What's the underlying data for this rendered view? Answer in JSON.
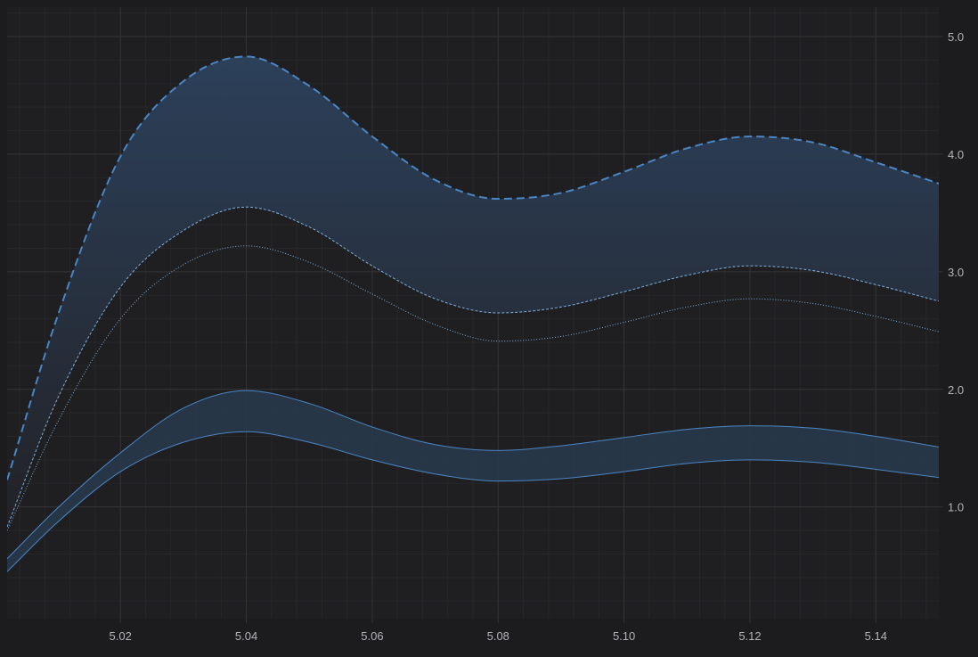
{
  "chart_data": {
    "type": "line",
    "title": "",
    "xlabel": "",
    "ylabel": "",
    "xlim": [
      5.002,
      5.15
    ],
    "ylim": [
      0.05,
      5.25
    ],
    "y_axis_position": "right",
    "grid": true,
    "x_ticks": [
      {
        "value": 5.02,
        "label": "5.02"
      },
      {
        "value": 5.04,
        "label": "5.04"
      },
      {
        "value": 5.06,
        "label": "5.06"
      },
      {
        "value": 5.08,
        "label": "5.08"
      },
      {
        "value": 5.1,
        "label": "5.10"
      },
      {
        "value": 5.12,
        "label": "5.12"
      },
      {
        "value": 5.14,
        "label": "5.14"
      }
    ],
    "y_ticks": [
      {
        "value": 1.0,
        "label": "1.0"
      },
      {
        "value": 2.0,
        "label": "2.0"
      },
      {
        "value": 3.0,
        "label": "3.0"
      },
      {
        "value": 4.0,
        "label": "4.0"
      },
      {
        "value": 5.0,
        "label": "5.0"
      }
    ],
    "x": [
      5.002,
      5.01,
      5.02,
      5.03,
      5.04,
      5.05,
      5.06,
      5.07,
      5.08,
      5.09,
      5.1,
      5.11,
      5.12,
      5.13,
      5.14,
      5.15
    ],
    "series": [
      {
        "style": "dashed",
        "values": [
          1.23,
          2.62,
          3.98,
          4.62,
          4.83,
          4.58,
          4.15,
          3.78,
          3.62,
          3.67,
          3.85,
          4.05,
          4.15,
          4.1,
          3.93,
          3.75
        ]
      },
      {
        "style": "fine-dashed",
        "values": [
          0.83,
          1.92,
          2.87,
          3.35,
          3.55,
          3.38,
          3.05,
          2.77,
          2.65,
          2.7,
          2.83,
          2.97,
          3.05,
          3.01,
          2.89,
          2.75
        ]
      },
      {
        "style": "dotted",
        "values": [
          0.8,
          1.72,
          2.6,
          3.06,
          3.22,
          3.08,
          2.81,
          2.55,
          2.41,
          2.45,
          2.57,
          2.7,
          2.77,
          2.73,
          2.62,
          2.49
        ]
      },
      {
        "style": "solid-upper",
        "values": [
          0.56,
          0.99,
          1.46,
          1.84,
          1.99,
          1.88,
          1.68,
          1.53,
          1.48,
          1.52,
          1.59,
          1.66,
          1.69,
          1.67,
          1.6,
          1.51
        ]
      },
      {
        "style": "solid-lower",
        "values": [
          0.45,
          0.87,
          1.3,
          1.55,
          1.64,
          1.55,
          1.4,
          1.28,
          1.22,
          1.24,
          1.3,
          1.37,
          1.4,
          1.38,
          1.32,
          1.25
        ]
      }
    ],
    "bands": [
      {
        "between": [
          0,
          1
        ],
        "fill": "upper-gradient"
      },
      {
        "between": [
          3,
          4
        ],
        "fill": "flat"
      }
    ],
    "colors": {
      "background": "#1c1c1e",
      "plot_background": "#1f1f21",
      "grid_major": "#343437",
      "grid_minor": "#27272a",
      "line": "#4a86c5",
      "line_light": "#7fb0e0",
      "band_top": "#2c405a",
      "band_bottom": "#222226",
      "band_flat": "#28394b",
      "tick_label": "#b4b4b8"
    }
  }
}
